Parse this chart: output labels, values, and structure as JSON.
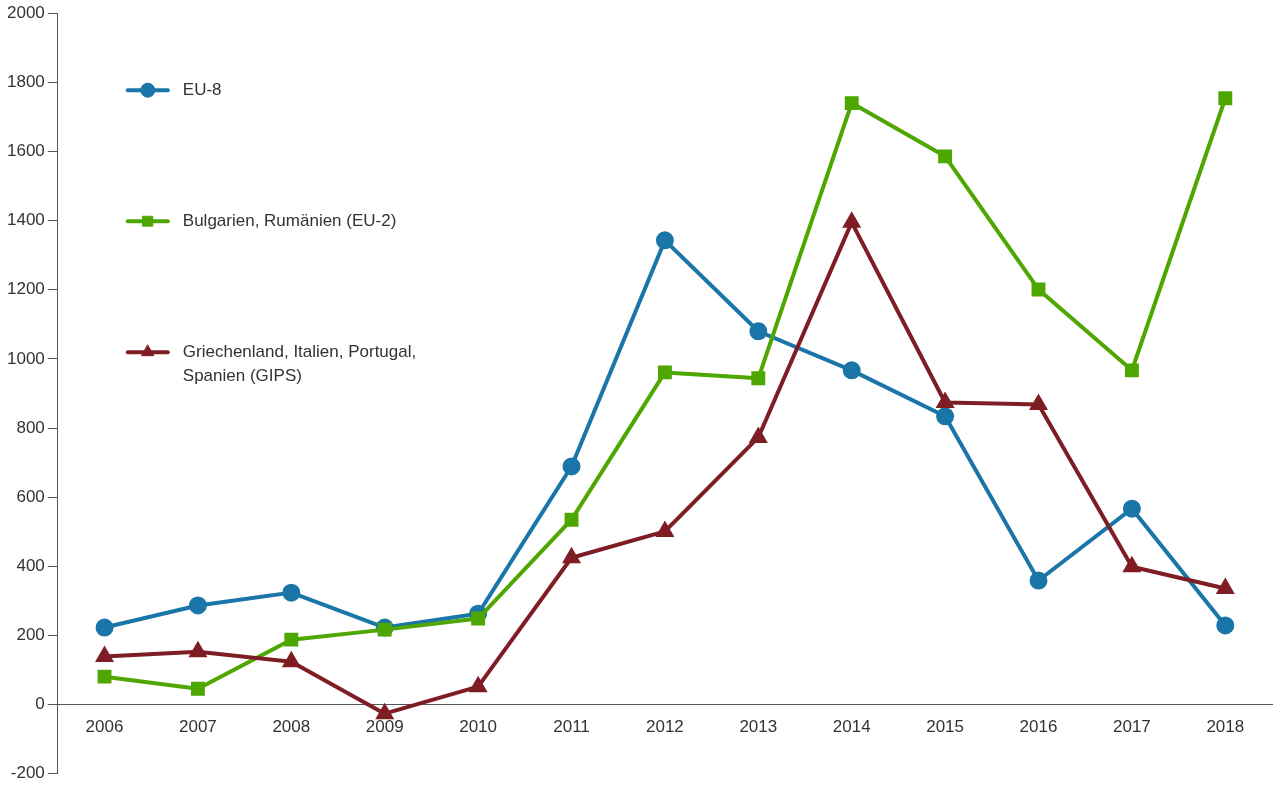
{
  "chart_data": {
    "type": "line",
    "categories": [
      "2006",
      "2007",
      "2008",
      "2009",
      "2010",
      "2011",
      "2012",
      "2013",
      "2014",
      "2015",
      "2016",
      "2017",
      "2018"
    ],
    "series": [
      {
        "name": "EU-8",
        "color": "#1a75a8",
        "marker": "circle",
        "values": [
          223,
          287,
          324,
          223,
          263,
          689,
          1343,
          1080,
          967,
          834,
          359,
          567,
          229
        ]
      },
      {
        "name": "Bulgarien, Rumänien (EU-2)",
        "color": "#4ea600",
        "marker": "square",
        "values": [
          81,
          46,
          188,
          217,
          249,
          535,
          961,
          944,
          1740,
          1586,
          1201,
          967,
          1754
        ]
      },
      {
        "name": "Griechenland, Italien, Portugal, Spanien (GIPS)",
        "color": "#7f1d25",
        "marker": "triangle",
        "values": [
          139,
          153,
          124,
          -26,
          52,
          425,
          501,
          773,
          1395,
          874,
          868,
          399,
          336
        ]
      }
    ],
    "ylim": [
      -200,
      2000
    ],
    "yticks": [
      -200,
      0,
      200,
      400,
      600,
      800,
      1000,
      1200,
      1400,
      1600,
      1800,
      2000
    ],
    "grid": false,
    "legend": "top left",
    "line_style": "solid"
  }
}
